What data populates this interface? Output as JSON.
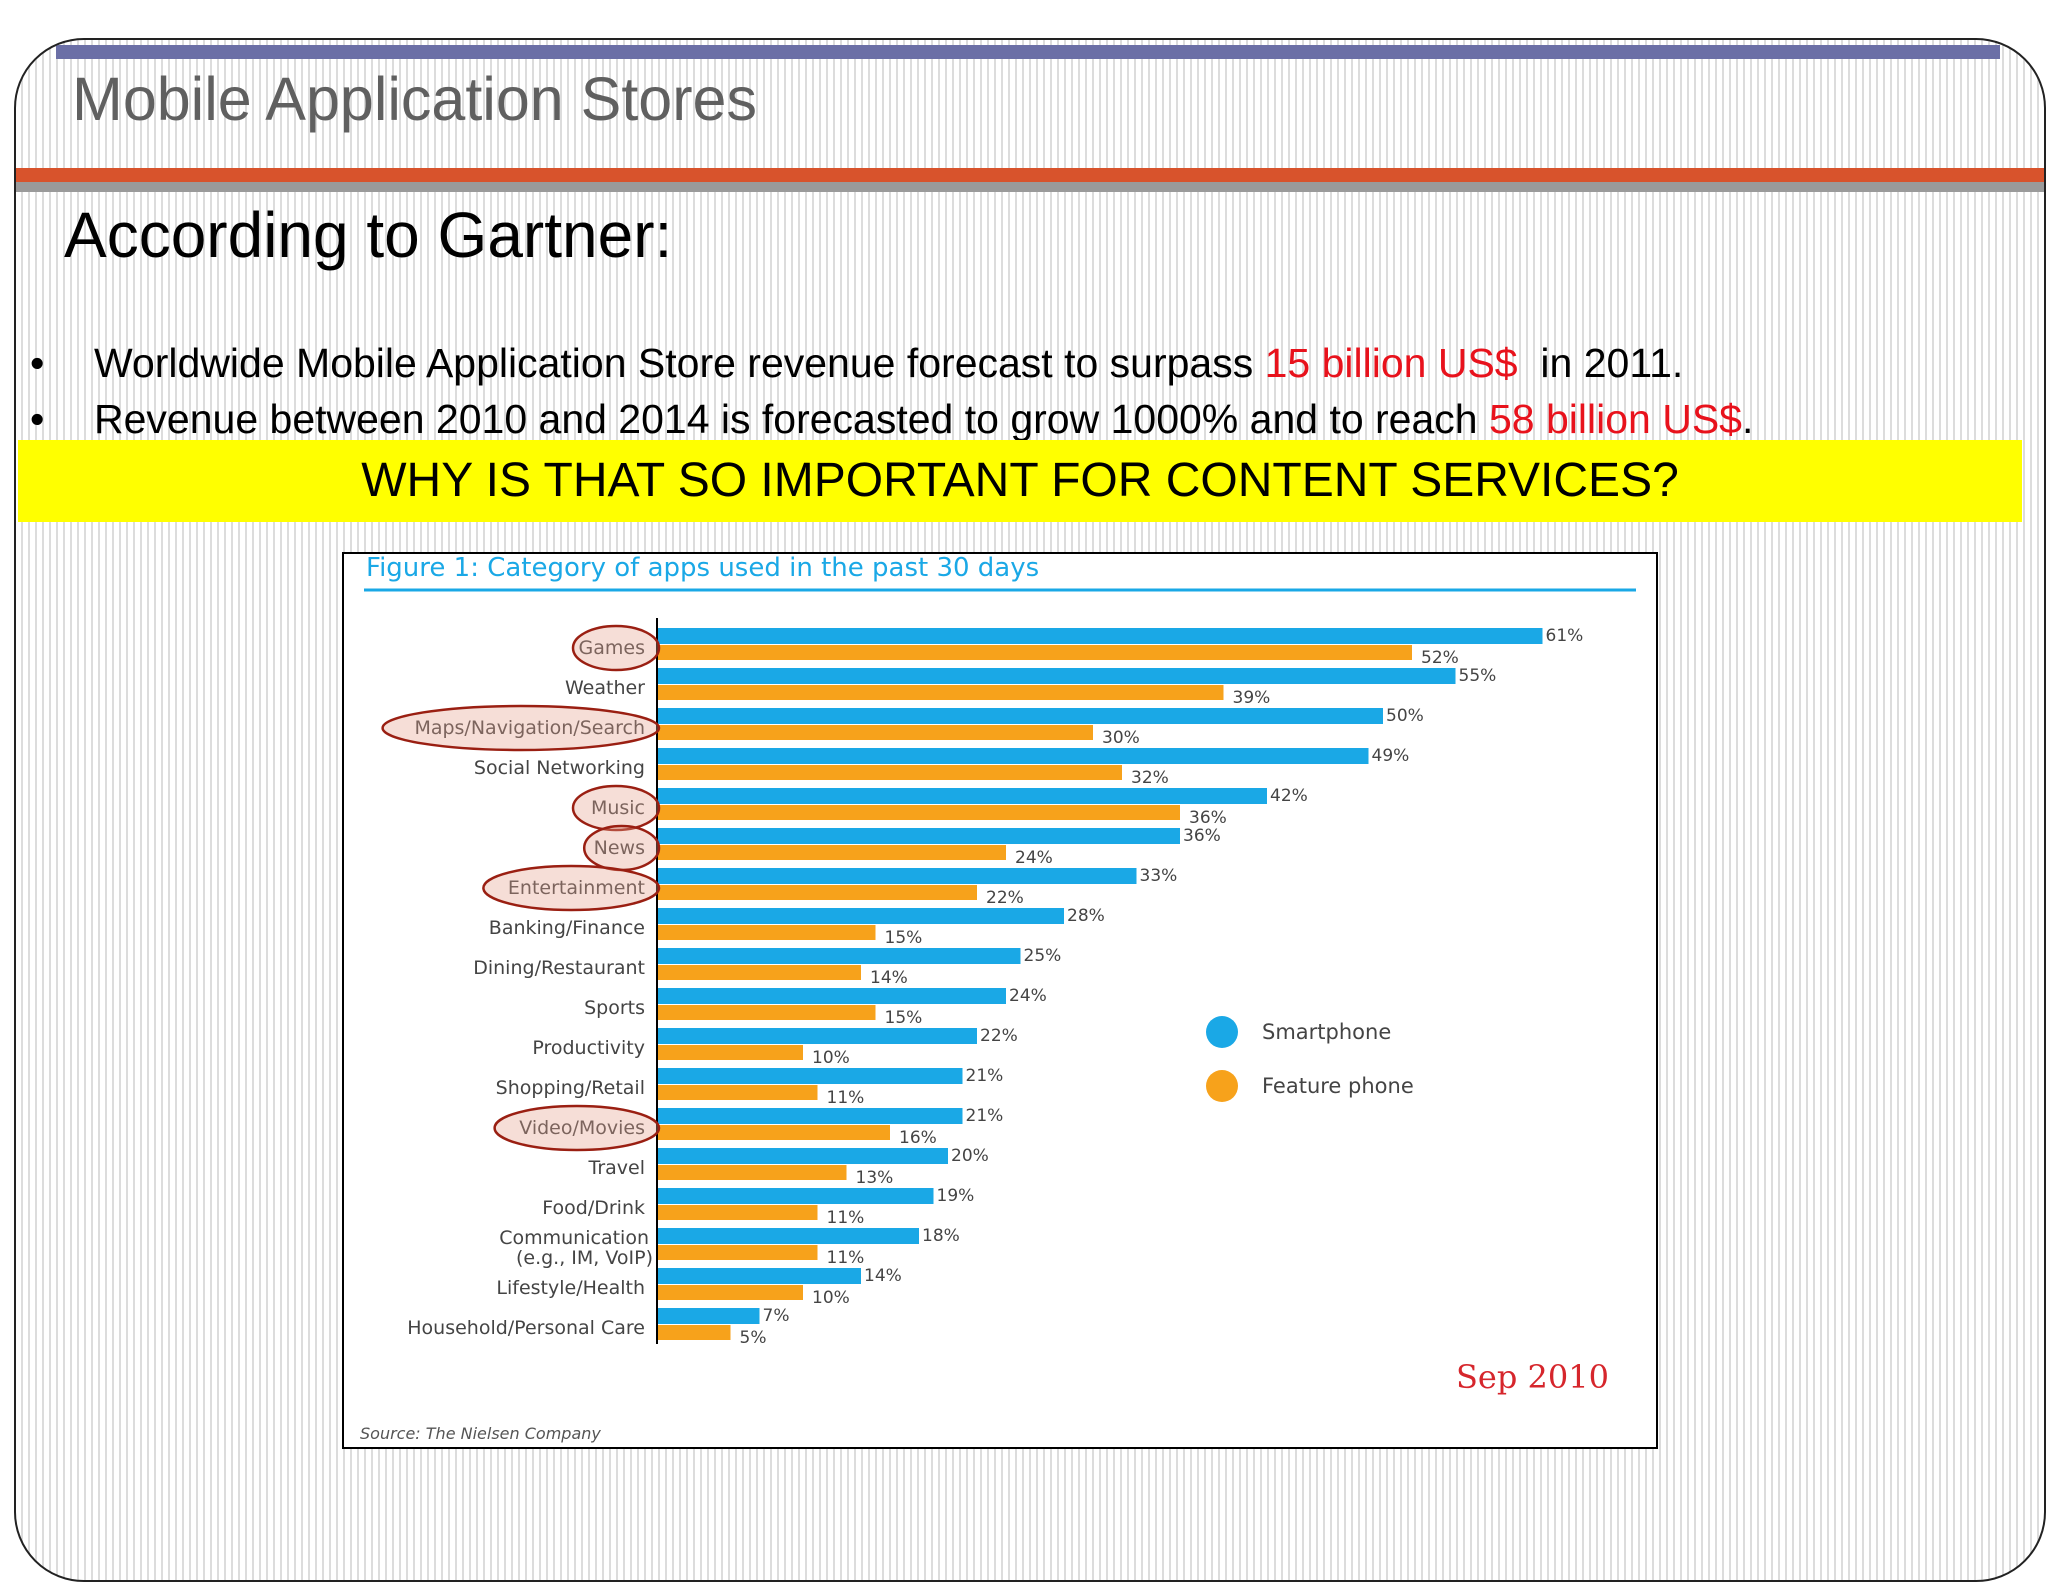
{
  "slide": {
    "title": "Mobile Application Stores",
    "heading": "According to Gartner:",
    "bullets": [
      {
        "marker": "•",
        "text_before": "Worldwide Mobile Application Store revenue forecast to surpass ",
        "highlight": "15 billion US$",
        "text_after": "  in 2011."
      },
      {
        "marker": "•",
        "text_before": "Revenue between 2010 and 2014 is forecasted to grow 1000% and to reach ",
        "highlight": "58 billion US$",
        "text_after": "."
      }
    ],
    "banner": "WHY IS THAT SO IMPORTANT FOR CONTENT SERVICES?"
  },
  "colors": {
    "accent_bar": "#6b6fa6",
    "title_rule": "#d8532c",
    "highlight_red": "#e8121c",
    "banner_yellow": "#ffff00",
    "smartphone": "#1aa8e6",
    "feature_phone": "#f7a21b",
    "chart_title": "#1aa8e6",
    "circle_outline": "#9a1f12"
  },
  "chart_data": {
    "type": "bar",
    "orientation": "horizontal",
    "title": "Figure 1: Category of apps used in the past 30 days",
    "source": "Source: The Nielsen Company",
    "date_note": "Sep 2010",
    "categories": [
      [
        "Games"
      ],
      [
        "Weather"
      ],
      [
        "Maps/Navigation/Search"
      ],
      [
        "Social Networking"
      ],
      [
        "Music"
      ],
      [
        "News"
      ],
      [
        "Entertainment"
      ],
      [
        "Banking/Finance"
      ],
      [
        "Dining/Restaurant"
      ],
      [
        "Sports"
      ],
      [
        "Productivity"
      ],
      [
        "Shopping/Retail"
      ],
      [
        "Video/Movies"
      ],
      [
        "Travel"
      ],
      [
        "Food/Drink"
      ],
      [
        "Communication",
        "(e.g., IM, VoIP)"
      ],
      [
        "Lifestyle/Health"
      ],
      [
        "Household/Personal Care"
      ]
    ],
    "highlighted_categories": [
      "Games",
      "Maps/Navigation/Search",
      "Music",
      "News",
      "Entertainment",
      "Video/Movies"
    ],
    "series": [
      {
        "name": "Smartphone",
        "color": "#1aa8e6",
        "values": [
          61,
          55,
          50,
          49,
          42,
          36,
          33,
          28,
          25,
          24,
          22,
          21,
          21,
          20,
          19,
          18,
          14,
          7
        ]
      },
      {
        "name": "Feature phone",
        "color": "#f7a21b",
        "values": [
          52,
          39,
          30,
          32,
          36,
          24,
          22,
          15,
          14,
          15,
          10,
          11,
          16,
          13,
          11,
          11,
          10,
          5
        ]
      }
    ],
    "value_suffix": "%",
    "xlim": [
      0,
      61
    ],
    "grid": false,
    "legend": "right"
  }
}
